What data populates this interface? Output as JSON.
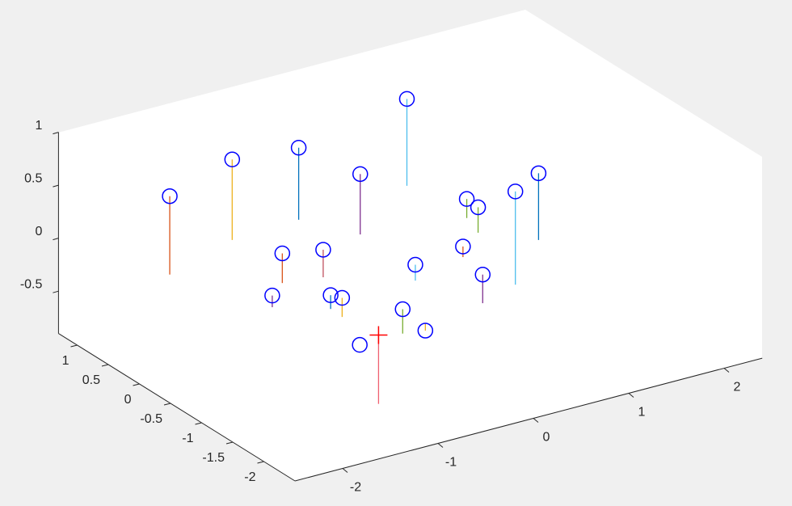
{
  "chart_data": {
    "type": "stem3",
    "x": [
      -2.11,
      -1.24,
      -0.51,
      -0.23,
      0.69,
      0.75,
      0.66,
      0.32,
      1.02,
      -1.38,
      -1.01,
      -1.74,
      -1.33,
      -1.34,
      -0.37,
      0.26,
      -0.14,
      -1.09,
      -0.8,
      -1.54
    ],
    "y": [
      0.11,
      0.44,
      0.49,
      -0.07,
      0.59,
      -0.28,
      -0.6,
      -1.72,
      -1.02,
      -0.58,
      -0.67,
      -0.97,
      -1.28,
      -1.48,
      -1.17,
      -0.97,
      -1.9,
      -2.07,
      -1.99,
      -2.07
    ],
    "z": [
      0.74,
      0.76,
      0.68,
      0.57,
      0.82,
      0.18,
      0.24,
      0.88,
      0.63,
      0.28,
      0.26,
      0.11,
      0.13,
      0.18,
      0.15,
      0.1,
      0.27,
      0.23,
      -0.07,
      0
    ],
    "stem_colors": [
      "#d95319",
      "#edb120",
      "#0072bd",
      "#7e2f8e",
      "#4dbeee",
      "#77ac30",
      "#77ac30",
      "#4dbeee",
      "#0072bd",
      "#d95319",
      "#c0505f",
      "#7e2f8e",
      "#0072bd",
      "#edb120",
      "#4dbeee",
      "#d95319",
      "#7e2f8e",
      "#77ac30",
      "#edb120",
      "#c0505f"
    ],
    "marker_color": "#0000ff",
    "highlight": {
      "x": -2.1,
      "y": -3.23,
      "z": 0.65,
      "color": "#ff0000",
      "stem_color": "#f06070"
    },
    "xlim": [
      -2.5,
      2.4
    ],
    "ylim": [
      -2.5,
      1.3
    ],
    "zlim": [
      -0.9,
      1
    ],
    "xticks": [
      -2,
      -1,
      0,
      1,
      2
    ],
    "yticks": [
      -2,
      -1.5,
      -1,
      -0.5,
      0,
      0.5,
      1
    ],
    "zticks": [
      -0.5,
      0,
      0.5,
      1
    ]
  }
}
